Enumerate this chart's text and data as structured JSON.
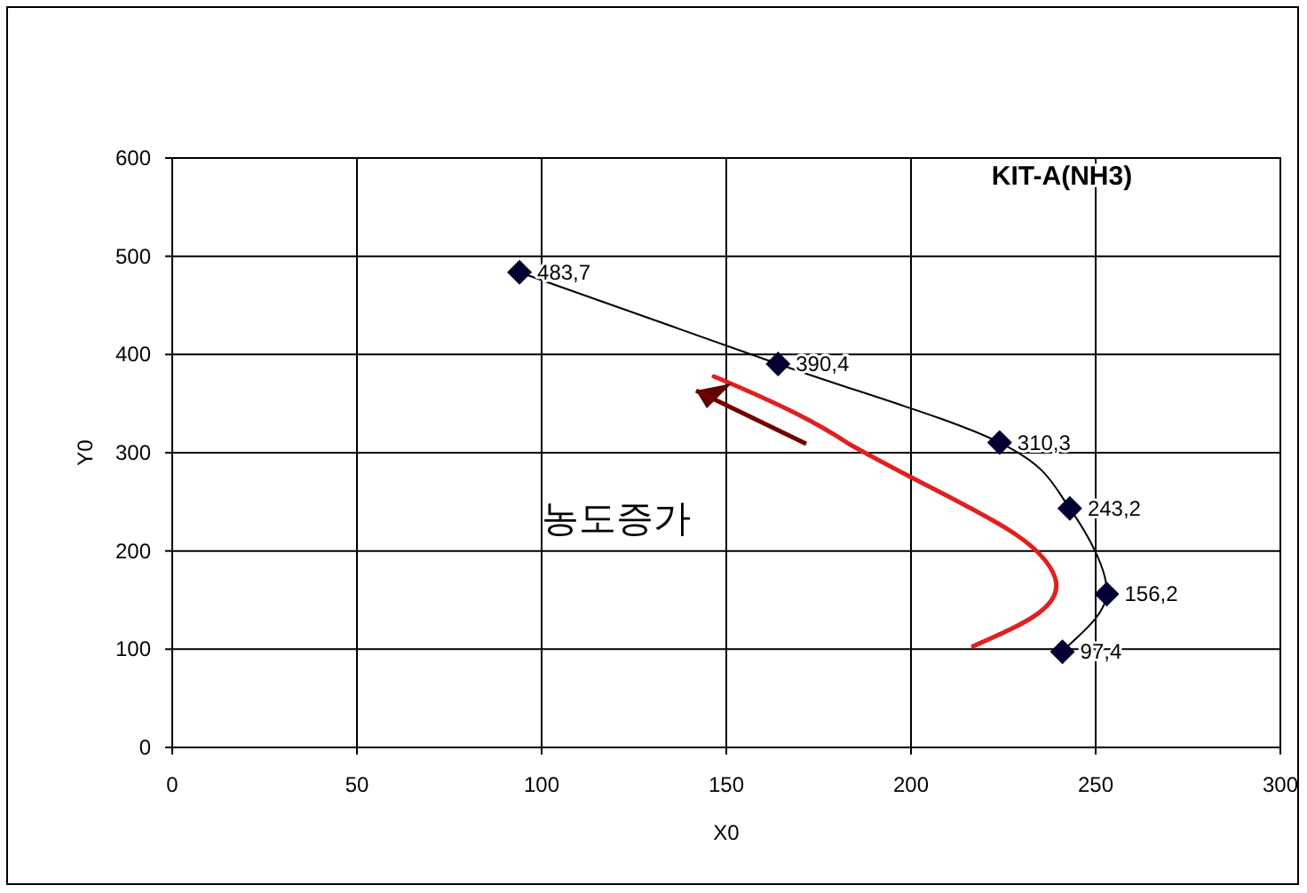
{
  "chart_data": {
    "type": "line",
    "title": "KIT-A(NH3)",
    "xlabel": "X0",
    "ylabel": "Y0",
    "x": [
      94,
      164,
      224,
      243,
      253,
      241
    ],
    "series": [
      {
        "color": "#000033",
        "values": [
          483.7,
          390.4,
          310.3,
          243.2,
          156.2,
          97.4
        ],
        "value_labels": [
          "483,7",
          "390,4",
          "310,3",
          "243,2",
          "156,2",
          "97,4"
        ]
      }
    ],
    "xlim": [
      0,
      300
    ],
    "xticks": [
      0,
      50,
      100,
      150,
      200,
      250,
      300
    ],
    "ylim": [
      0,
      600
    ],
    "yticks": [
      0,
      100,
      200,
      300,
      400,
      500,
      600
    ],
    "grid": true,
    "marker": "diamond",
    "line_style": "solid",
    "annotations": [
      "농도증가"
    ]
  }
}
